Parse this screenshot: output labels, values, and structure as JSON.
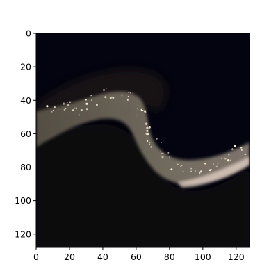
{
  "chart_data": {
    "type": "heatmap",
    "title": "",
    "xlabel": "",
    "ylabel": "",
    "xlim": [
      0,
      128
    ],
    "ylim": [
      128,
      0
    ],
    "x_ticks": [
      0,
      20,
      40,
      60,
      80,
      100,
      120
    ],
    "y_ticks": [
      0,
      20,
      40,
      60,
      80,
      100,
      120
    ],
    "x_tick_labels": [
      "0",
      "20",
      "40",
      "60",
      "80",
      "100",
      "120"
    ],
    "y_tick_labels": [
      "0",
      "20",
      "40",
      "60",
      "80",
      "100",
      "120"
    ],
    "image_size": [
      128,
      128
    ],
    "grid": false,
    "legend": "none",
    "colors": {
      "background": "#040410",
      "dark_region": "#0d0608",
      "band": "#7a7264",
      "band_highlight": "#e8d8cc",
      "stars": "#fff2dc"
    }
  }
}
